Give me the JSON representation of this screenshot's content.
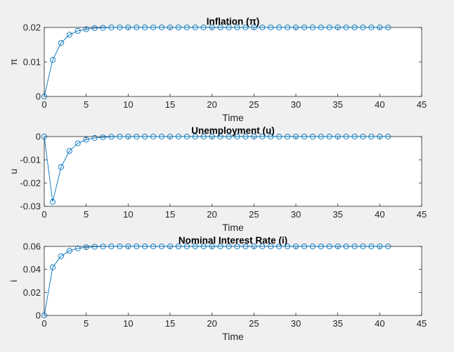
{
  "figure": {
    "background": "#f0f0f0",
    "axes_background": "#ffffff",
    "line_color": "#0072bd"
  },
  "chart_data": [
    {
      "type": "line",
      "marker": "circle",
      "title": "Inflation (π)",
      "xlabel": "Time",
      "ylabel": "π",
      "xlim": [
        0,
        45
      ],
      "ylim": [
        0,
        0.02
      ],
      "xticks": [
        "0",
        "5",
        "10",
        "15",
        "20",
        "25",
        "30",
        "35",
        "40",
        "45"
      ],
      "yticks": [
        "0",
        "0.01",
        "0.02"
      ],
      "x": [
        0,
        1,
        2,
        3,
        4,
        5,
        6,
        7,
        8,
        9,
        10,
        11,
        12,
        13,
        14,
        15,
        16,
        17,
        18,
        19,
        20,
        21,
        22,
        23,
        24,
        25,
        26,
        27,
        28,
        29,
        30,
        31,
        32,
        33,
        34,
        35,
        36,
        37,
        38,
        39,
        40,
        41
      ],
      "y": [
        0,
        0.0106,
        0.0155,
        0.0179,
        0.019,
        0.0195,
        0.0198,
        0.0199,
        0.02,
        0.02,
        0.02,
        0.02,
        0.02,
        0.02,
        0.02,
        0.02,
        0.02,
        0.02,
        0.02,
        0.02,
        0.02,
        0.02,
        0.02,
        0.02,
        0.02,
        0.02,
        0.02,
        0.02,
        0.02,
        0.02,
        0.02,
        0.02,
        0.02,
        0.02,
        0.02,
        0.02,
        0.02,
        0.02,
        0.02,
        0.02,
        0.02,
        0.02
      ],
      "grid": false
    },
    {
      "type": "line",
      "marker": "circle",
      "title": "Unemployment (u)",
      "xlabel": "Time",
      "ylabel": "u",
      "xlim": [
        0,
        45
      ],
      "ylim": [
        -0.03,
        0
      ],
      "xticks": [
        "0",
        "5",
        "10",
        "15",
        "20",
        "25",
        "30",
        "35",
        "40",
        "45"
      ],
      "yticks": [
        "-0.03",
        "-0.02",
        "-0.01",
        "0"
      ],
      "x": [
        0,
        1,
        2,
        3,
        4,
        5,
        6,
        7,
        8,
        9,
        10,
        11,
        12,
        13,
        14,
        15,
        16,
        17,
        18,
        19,
        20,
        21,
        22,
        23,
        24,
        25,
        26,
        27,
        28,
        29,
        30,
        31,
        32,
        33,
        34,
        35,
        36,
        37,
        38,
        39,
        40,
        41
      ],
      "y": [
        0,
        -0.0281,
        -0.0131,
        -0.0062,
        -0.0029,
        -0.0013,
        -0.0006,
        -0.0003,
        -0.0001,
        0,
        0,
        0,
        0,
        0,
        0,
        0,
        0,
        0,
        0,
        0,
        0,
        0,
        0,
        0,
        0,
        0,
        0,
        0,
        0,
        0,
        0,
        0,
        0,
        0,
        0,
        0,
        0,
        0,
        0,
        0,
        0,
        0
      ],
      "grid": false
    },
    {
      "type": "line",
      "marker": "circle",
      "title": "Nominal Interest Rate (i)",
      "xlabel": "Time",
      "ylabel": "i",
      "xlim": [
        0,
        45
      ],
      "ylim": [
        0,
        0.06
      ],
      "xticks": [
        "0",
        "5",
        "10",
        "15",
        "20",
        "25",
        "30",
        "35",
        "40",
        "45"
      ],
      "yticks": [
        "0",
        "0.02",
        "0.04",
        "0.06"
      ],
      "x": [
        0,
        1,
        2,
        3,
        4,
        5,
        6,
        7,
        8,
        9,
        10,
        11,
        12,
        13,
        14,
        15,
        16,
        17,
        18,
        19,
        20,
        21,
        22,
        23,
        24,
        25,
        26,
        27,
        28,
        29,
        30,
        31,
        32,
        33,
        34,
        35,
        36,
        37,
        38,
        39,
        40,
        41
      ],
      "y": [
        0,
        0.0418,
        0.0515,
        0.0562,
        0.0583,
        0.0593,
        0.0597,
        0.0599,
        0.06,
        0.06,
        0.06,
        0.06,
        0.06,
        0.06,
        0.06,
        0.06,
        0.06,
        0.06,
        0.06,
        0.06,
        0.06,
        0.06,
        0.06,
        0.06,
        0.06,
        0.06,
        0.06,
        0.06,
        0.06,
        0.06,
        0.06,
        0.06,
        0.06,
        0.06,
        0.06,
        0.06,
        0.06,
        0.06,
        0.06,
        0.06,
        0.06,
        0.06
      ],
      "grid": false
    }
  ]
}
